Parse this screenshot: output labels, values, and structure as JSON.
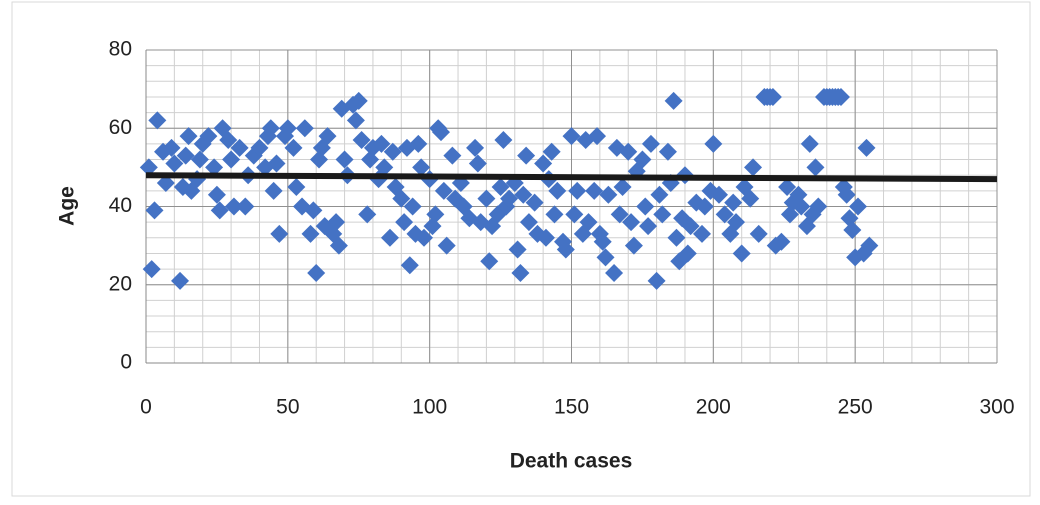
{
  "chart_data": {
    "type": "scatter",
    "x_label": "Death cases",
    "y_label": "Age",
    "xlim": [
      0,
      300
    ],
    "xticks": [
      0,
      50,
      100,
      150,
      200,
      250,
      300
    ],
    "ylim": [
      0,
      80
    ],
    "yticks": [
      0,
      20,
      40,
      60,
      80
    ],
    "grid": true,
    "minor_grid": {
      "x": 10,
      "y": 4
    },
    "series": [
      {
        "color": "#4472c4",
        "x": [
          1,
          2,
          3,
          4,
          6,
          7,
          9,
          10,
          12,
          13,
          14,
          15,
          16,
          18,
          19,
          20,
          22,
          24,
          25,
          26,
          27,
          29,
          30,
          31,
          33,
          35,
          36,
          38,
          40,
          42,
          43,
          44,
          45,
          46,
          47,
          49,
          50,
          52,
          53,
          55,
          56,
          58,
          59,
          60,
          61,
          62,
          63,
          64,
          66,
          67,
          68,
          69,
          70,
          71,
          73,
          74,
          75,
          76,
          78,
          79,
          80,
          82,
          83,
          84,
          86,
          87,
          88,
          90,
          91,
          92,
          93,
          94,
          95,
          96,
          97,
          98,
          100,
          101,
          102,
          103,
          104,
          105,
          106,
          108,
          109,
          111,
          112,
          114,
          116,
          117,
          118,
          120,
          121,
          122,
          124,
          125,
          126,
          127,
          128,
          130,
          131,
          132,
          133,
          134,
          135,
          137,
          138,
          140,
          141,
          142,
          143,
          144,
          145,
          147,
          148,
          150,
          151,
          152,
          154,
          155,
          156,
          158,
          159,
          160,
          161,
          162,
          163,
          165,
          166,
          167,
          168,
          170,
          171,
          172,
          173,
          175,
          176,
          177,
          178,
          180,
          181,
          182,
          184,
          185,
          186,
          187,
          188,
          189,
          190,
          191,
          192,
          194,
          196,
          197,
          199,
          200,
          202,
          204,
          206,
          207,
          208,
          210,
          211,
          213,
          214,
          216,
          218,
          219,
          220,
          221,
          222,
          224,
          226,
          227,
          228,
          230,
          231,
          233,
          234,
          235,
          236,
          237,
          239,
          240,
          241,
          242,
          243,
          244,
          245,
          246,
          247,
          248,
          249,
          250,
          251,
          253,
          254,
          255
        ],
        "values": [
          50,
          24,
          39,
          62,
          54,
          46,
          55,
          51,
          21,
          45,
          53,
          58,
          44,
          47,
          52,
          56,
          58,
          50,
          43,
          39,
          60,
          57,
          52,
          40,
          55,
          40,
          48,
          53,
          55,
          50,
          58,
          60,
          44,
          51,
          33,
          58,
          60,
          55,
          45,
          40,
          60,
          33,
          39,
          23,
          52,
          55,
          35,
          58,
          33,
          36,
          30,
          65,
          52,
          48,
          66,
          62,
          67,
          57,
          38,
          52,
          55,
          47,
          56,
          50,
          32,
          54,
          45,
          42,
          36,
          55,
          25,
          40,
          33,
          56,
          50,
          32,
          47,
          35,
          38,
          60,
          59,
          44,
          30,
          53,
          42,
          46,
          40,
          37,
          55,
          51,
          36,
          42,
          26,
          35,
          38,
          45,
          57,
          40,
          42,
          46,
          29,
          23,
          43,
          53,
          36,
          41,
          33,
          51,
          32,
          47,
          54,
          38,
          44,
          31,
          29,
          58,
          38,
          44,
          33,
          57,
          36,
          44,
          58,
          33,
          31,
          27,
          43,
          23,
          55,
          38,
          45,
          54,
          36,
          30,
          49,
          52,
          40,
          35,
          56,
          21,
          43,
          38,
          54,
          46,
          67,
          32,
          26,
          37,
          48,
          28,
          35,
          41,
          33,
          40,
          44,
          56,
          43,
          38,
          33,
          41,
          36,
          28,
          45,
          42,
          50,
          33,
          68,
          68,
          68,
          68,
          30,
          31,
          45,
          38,
          41,
          43,
          40,
          35,
          56,
          38,
          50,
          40,
          68,
          68,
          68,
          68,
          68,
          68,
          68,
          45,
          43,
          37,
          34,
          27,
          40,
          28,
          55,
          30
        ]
      }
    ],
    "trendline": {
      "color": "#1a1a1a",
      "x": [
        0,
        300
      ],
      "values": [
        48,
        47
      ]
    }
  }
}
